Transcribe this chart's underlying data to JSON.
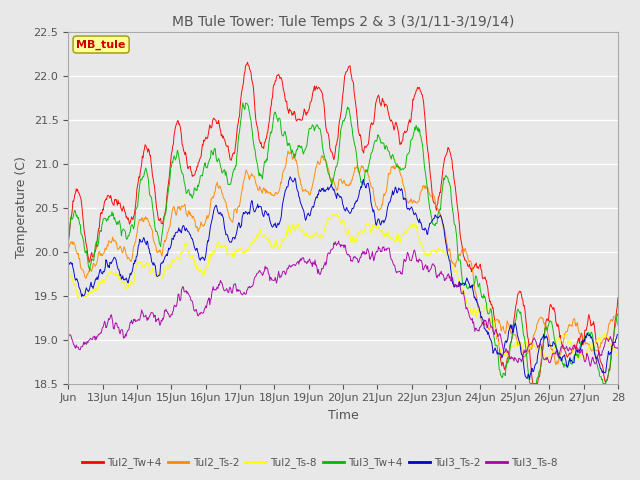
{
  "title": "MB Tule Tower: Tule Temps 2 & 3 (3/1/11-3/19/14)",
  "ylabel": "Temperature (C)",
  "xlabel": "Time",
  "ylim": [
    18.5,
    22.5
  ],
  "background_color": "#e8e8e8",
  "legend_label": "MB_tule",
  "legend_text_color": "#cc0000",
  "legend_box_color": "#ffff99",
  "series": [
    {
      "name": "Tul2_Tw+4",
      "color": "#ff0000"
    },
    {
      "name": "Tul2_Ts-2",
      "color": "#ff8800"
    },
    {
      "name": "Tul2_Ts-8",
      "color": "#ffff00"
    },
    {
      "name": "Tul3_Tw+4",
      "color": "#00bb00"
    },
    {
      "name": "Tul3_Ts-2",
      "color": "#0000cc"
    },
    {
      "name": "Tul3_Ts-8",
      "color": "#aa00aa"
    }
  ],
  "xtick_labels": [
    "Jun",
    "13Jun",
    "14Jun",
    "15Jun",
    "16Jun",
    "17Jun",
    "18Jun",
    "19Jun",
    "20Jun",
    "21Jun",
    "22Jun",
    "23Jun",
    "24Jun",
    "25Jun",
    "26Jun",
    "27Jun",
    "28"
  ],
  "n_days": 17
}
